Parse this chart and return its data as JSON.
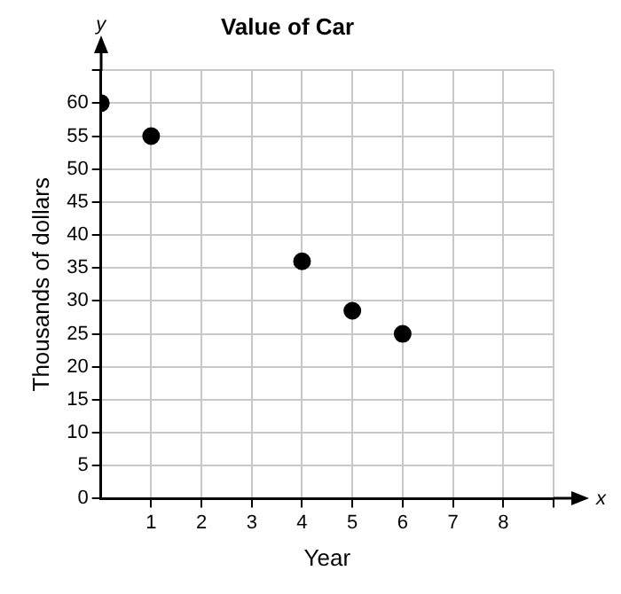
{
  "chart_data": {
    "type": "scatter",
    "title": "Value of Car",
    "xlabel": "Year",
    "ylabel": "Thousands of dollars",
    "annotations": [
      "y",
      "x"
    ],
    "x": [
      0,
      1,
      4,
      5,
      6
    ],
    "series": [
      {
        "color": "#000000",
        "values": [
          60,
          55,
          36,
          28.5,
          25
        ]
      }
    ],
    "xlim": [
      0,
      9
    ],
    "xticks": [
      1,
      2,
      3,
      4,
      5,
      6,
      7,
      8,
      {
        "value": 9,
        "label": null
      }
    ],
    "ylim": [
      0,
      65
    ],
    "yticks": [
      0,
      5,
      10,
      15,
      20,
      25,
      30,
      35,
      40,
      45,
      50,
      55,
      60,
      {
        "value": 65,
        "label": null
      }
    ],
    "grid": true,
    "legend": false,
    "marker": "circle"
  }
}
